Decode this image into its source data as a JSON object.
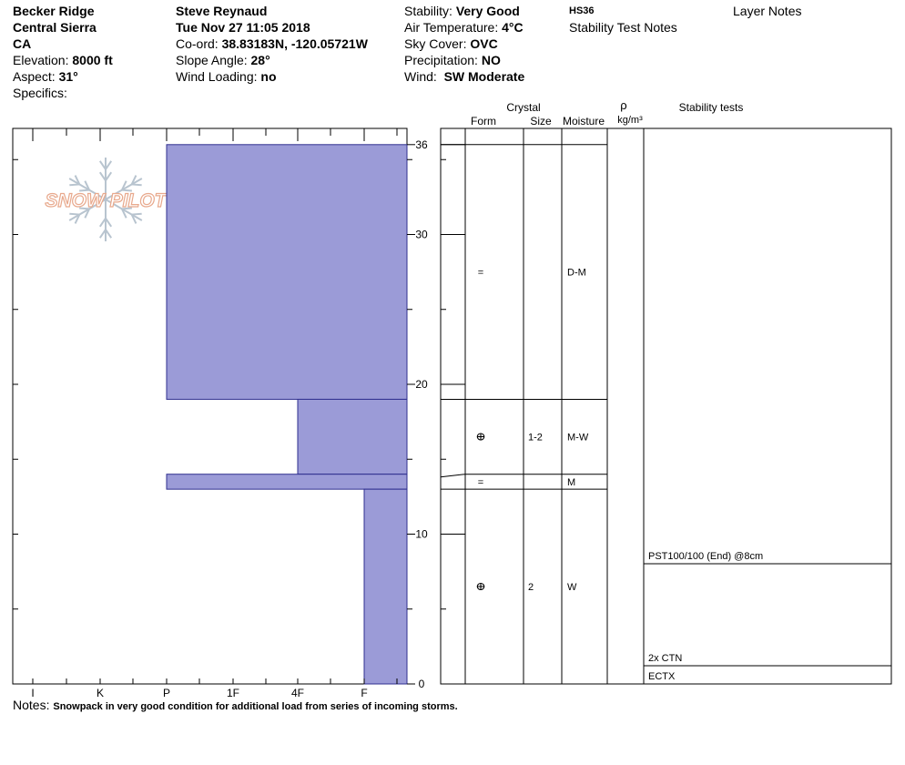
{
  "header": {
    "location": "Becker Ridge",
    "range": "Central Sierra",
    "state": "CA",
    "elevation_label": "Elevation:",
    "elevation": "8000 ft",
    "aspect_label": "Aspect:",
    "aspect": "31°",
    "specifics_label": "Specifics:",
    "observer": "Steve Reynaud",
    "datetime": "Tue Nov 27 11:05 2018",
    "coord_label": "Co-ord:",
    "coord": "38.83183N, -120.05721W",
    "slope_label": "Slope Angle:",
    "slope": "28°",
    "wind_loading_label": "Wind Loading:",
    "wind_loading": "no",
    "stability_label": "Stability:",
    "stability": "Very Good",
    "air_temp_label": "Air Temperature:",
    "air_temp": "4°C",
    "sky_label": "Sky Cover:",
    "sky": "OVC",
    "precip_label": "Precipitation:",
    "precip": "NO",
    "wind_label": "Wind:",
    "wind": "SW Moderate",
    "hs": "HS36",
    "stability_test_notes": "Stability Test Notes",
    "layer_notes": "Layer Notes"
  },
  "logo": {
    "text": "SNOW PILOT"
  },
  "columns": {
    "crystal": "Crystal",
    "form": "Form",
    "size": "Size",
    "moisture": "Moisture",
    "rho": "ρ",
    "density_unit": "kg/m³",
    "stability_tests": "Stability tests"
  },
  "notes": {
    "label": "Notes:",
    "text": "Snowpack in very good condition for additional load from series of incoming storms."
  },
  "colors": {
    "layer_fill": "#9b9bd7",
    "layer_stroke": "#2f2f8f",
    "logo": "#e8a98d",
    "flake": "#b8c4cf"
  },
  "chart_data": {
    "type": "bar",
    "orientation": "horizontal",
    "x_categories": [
      "I",
      "K",
      "P",
      "1F",
      "4F",
      "F"
    ],
    "x_note": "hardness scale, index 0=I .. 5=F, bars extend from the hardness value to the right edge",
    "y_ticks": [
      0,
      10,
      20,
      30,
      36
    ],
    "ylim": [
      0,
      36
    ],
    "y_unit": "cm",
    "layers": [
      {
        "bottom": 19,
        "top": 36,
        "hardness": "P",
        "hardness_index": 2,
        "form": "=",
        "size": "",
        "moisture": "D-M"
      },
      {
        "bottom": 14,
        "top": 19,
        "hardness": "4F",
        "hardness_index": 4,
        "form": "ⴲ",
        "size": "1-2",
        "moisture": "M-W"
      },
      {
        "bottom": 13,
        "top": 14,
        "hardness": "P",
        "hardness_index": 2,
        "form": "=",
        "size": "",
        "moisture": "M"
      },
      {
        "bottom": 0,
        "top": 13,
        "hardness": "F",
        "hardness_index": 5,
        "form": "ⴲ",
        "size": "2",
        "moisture": "W"
      }
    ],
    "stability_tests": [
      {
        "label": "PST100/100 (End) @8cm",
        "depth": 8
      },
      {
        "label": "2x CTN",
        "depth": 1.2
      },
      {
        "label": "ECTX",
        "depth": 0
      }
    ]
  }
}
